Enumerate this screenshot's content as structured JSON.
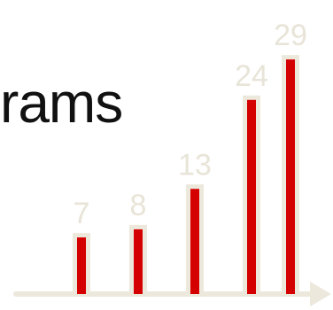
{
  "title_fragment": "rams",
  "chart_data": {
    "type": "bar",
    "categories": [
      "",
      "",
      "",
      "",
      ""
    ],
    "values": [
      7,
      8,
      13,
      24,
      29
    ],
    "data_labels": [
      "7",
      "8",
      "13",
      "24",
      "29"
    ],
    "ylim": [
      0,
      30
    ],
    "grid": false,
    "colors": {
      "bar_fill": "#d40000",
      "bar_outline": "#ece8dc",
      "axis": "#ece8dc",
      "label": "#e8e4d8"
    }
  }
}
